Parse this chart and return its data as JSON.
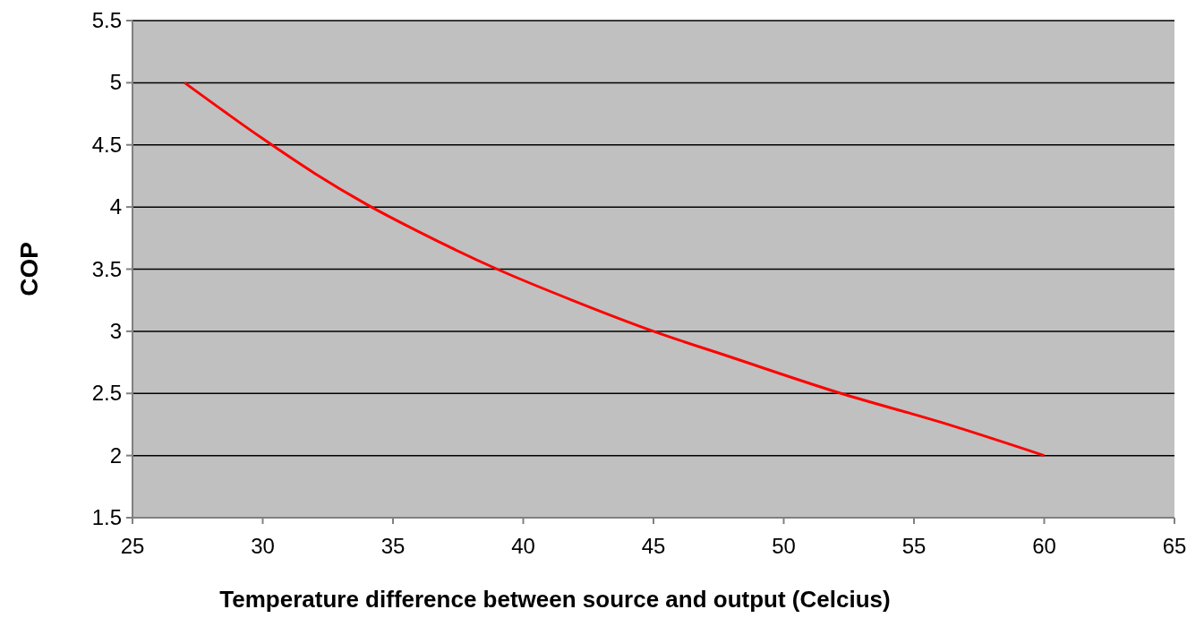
{
  "chart_data": {
    "type": "line",
    "xlabel": "Temperature difference  between source and  output (Celcius)",
    "ylabel": "COP",
    "xlim": [
      25,
      65
    ],
    "xticks": [
      25,
      30,
      35,
      40,
      45,
      50,
      55,
      60,
      65
    ],
    "ylim": [
      1.5,
      5.5
    ],
    "yticks": [
      1.5,
      2,
      2.5,
      3,
      3.5,
      4,
      4.5,
      5,
      5.5
    ],
    "grid": "y",
    "series": [
      {
        "color": "#ff0000",
        "x": [
          27,
          30,
          32,
          34,
          36,
          39,
          42,
          45,
          48,
          52.2,
          56,
          60
        ],
        "values": [
          5,
          4.55,
          4.27,
          4.02,
          3.8,
          3.5,
          3.24,
          3.0,
          2.79,
          2.5,
          2.27,
          2.0
        ]
      }
    ]
  }
}
